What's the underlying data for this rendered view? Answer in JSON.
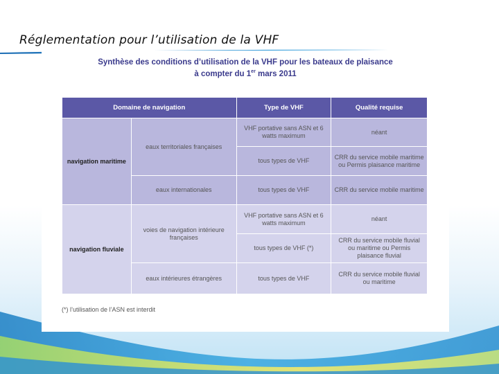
{
  "slide": {
    "title": "Réglementation pour l’utilisation de la VHF"
  },
  "document": {
    "title_line1": "Synthèse des conditions d’utilisation de la VHF pour les bateaux de plaisance",
    "title_line2_prefix": "à compter du 1",
    "title_line2_sup": "er",
    "title_line2_suffix": " mars 2011",
    "headers": {
      "domain": "Domaine de navigation",
      "type": "Type de VHF",
      "quality": "Qualité requise"
    },
    "maritime": {
      "domain": "navigation maritime",
      "zone1": "eaux territoriales françaises",
      "zone1_type1": "VHF portative sans ASN et 6 watts maximum",
      "zone1_quality1": "néant",
      "zone1_type2": "tous types de VHF",
      "zone1_quality2": "CRR du service mobile maritime ou Permis plaisance maritime",
      "zone2": "eaux internationales",
      "zone2_type": "tous types de VHF",
      "zone2_quality": "CRR du service mobile maritime"
    },
    "fluviale": {
      "domain": "navigation fluviale",
      "zone1": "voies de navigation intérieure françaises",
      "zone1_type1": "VHF portative sans ASN et 6 watts maximum",
      "zone1_quality1": "néant",
      "zone1_type2": "tous types de VHF (*)",
      "zone1_quality2": "CRR du service mobile fluvial ou maritime ou Permis plaisance fluvial",
      "zone2": "eaux intérieures étrangères",
      "zone2_type": "tous types de VHF",
      "zone2_quality": "CRR du service mobile fluvial ou maritime"
    },
    "footnote": "(*) l’utilisation de l’ASN est interdit"
  },
  "colors": {
    "header": "#5b58a6",
    "maritime_rows": "#b9b7dd",
    "fluviale_rows": "#d4d3ec",
    "doc_title": "#3a3a8c"
  }
}
